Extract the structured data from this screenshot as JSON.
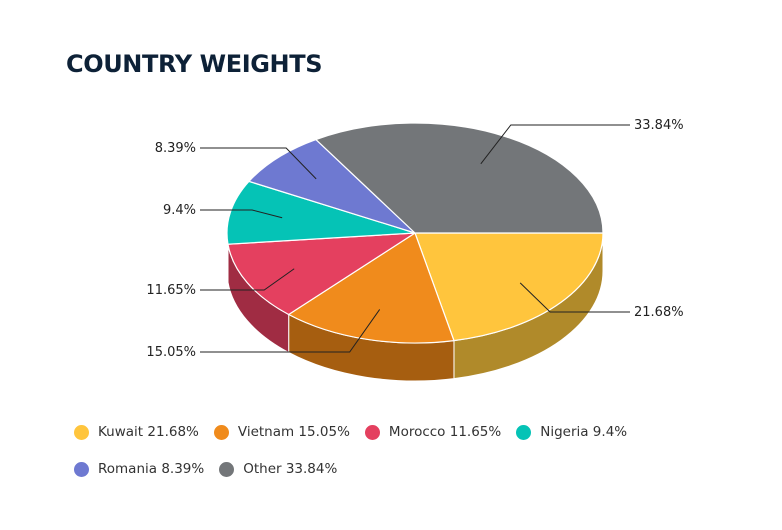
{
  "title": "COUNTRY WEIGHTS",
  "chart_data": {
    "type": "pie",
    "style": "3d",
    "slices": [
      {
        "name": "Kuwait",
        "value": 21.68,
        "label": "21.68%",
        "legend": "Kuwait 21.68%",
        "color": "#FFC53D",
        "side_color": "#B08A2A"
      },
      {
        "name": "Vietnam",
        "value": 15.05,
        "label": "15.05%",
        "legend": "Vietnam 15.05%",
        "color": "#F08B1C",
        "side_color": "#A65E10"
      },
      {
        "name": "Morocco",
        "value": 11.65,
        "label": "11.65%",
        "legend": "Morocco 11.65%",
        "color": "#E4405F",
        "side_color": "#A02C43"
      },
      {
        "name": "Nigeria",
        "value": 9.4,
        "label": "9.4%",
        "legend": "Nigeria 9.4%",
        "color": "#05C3B6",
        "side_color": "#04887F"
      },
      {
        "name": "Romania",
        "value": 8.39,
        "label": "8.39%",
        "legend": "Romania 8.39%",
        "color": "#6E79D1",
        "side_color": "#4D5592"
      },
      {
        "name": "Other",
        "value": 33.84,
        "label": "33.84%",
        "legend": "Other 33.84%",
        "color": "#737679",
        "side_color": "#505254"
      }
    ],
    "legend_position": "bottom"
  }
}
